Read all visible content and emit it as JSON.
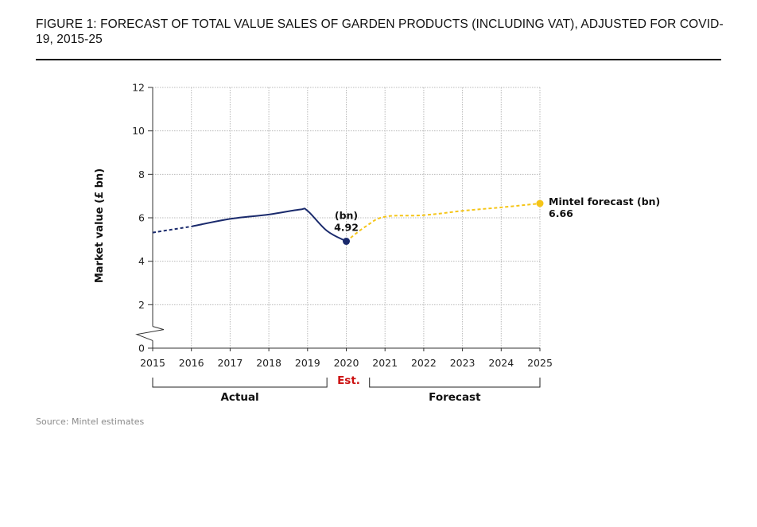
{
  "figure": {
    "title": "FIGURE 1: FORECAST OF TOTAL VALUE SALES OF GARDEN PRODUCTS (INCLUDING VAT), ADJUSTED FOR COVID-19, 2015-25",
    "source": "Source: Mintel estimates"
  },
  "chart_data": {
    "type": "line",
    "ylabel": "Market value (£ bn)",
    "xlabel": "",
    "ylim": [
      0,
      12
    ],
    "yticks": [
      0,
      2,
      4,
      6,
      8,
      10,
      12
    ],
    "y_axis_break": true,
    "grid": true,
    "x_ticks": [
      "2015",
      "2016",
      "2017",
      "2018",
      "2019",
      "2020",
      "2021",
      "2022",
      "2023",
      "2024",
      "2025"
    ],
    "series": [
      {
        "segment": "actual",
        "color": "#1a2a6c",
        "points": [
          [
            2015,
            5.32
          ],
          [
            2016,
            5.6
          ],
          [
            2017,
            5.95
          ],
          [
            2018,
            6.15
          ],
          [
            2018.8,
            6.38
          ],
          [
            2019,
            6.32
          ],
          [
            2019.5,
            5.4
          ],
          [
            2020,
            4.92
          ]
        ]
      },
      {
        "segment": "forecast",
        "color": "#f5c518",
        "points": [
          [
            2020,
            4.92
          ],
          [
            2020.5,
            5.6
          ],
          [
            2021,
            6.05
          ],
          [
            2022,
            6.12
          ],
          [
            2023,
            6.32
          ],
          [
            2024,
            6.48
          ],
          [
            2025,
            6.66
          ]
        ]
      }
    ],
    "annotations": [
      {
        "x": 2020,
        "y": 4.92,
        "unit": "(bn)",
        "value": "4.92"
      },
      {
        "x": 2025,
        "y": 6.66,
        "unit": "Mintel forecast (bn)",
        "value": "6.66"
      }
    ],
    "periods": [
      {
        "label": "Actual",
        "from": 2015,
        "to": 2019.5
      },
      {
        "label": "Est.",
        "at": 2020,
        "color": "#cc1111"
      },
      {
        "label": "Forecast",
        "from": 2020.6,
        "to": 2025
      }
    ]
  }
}
